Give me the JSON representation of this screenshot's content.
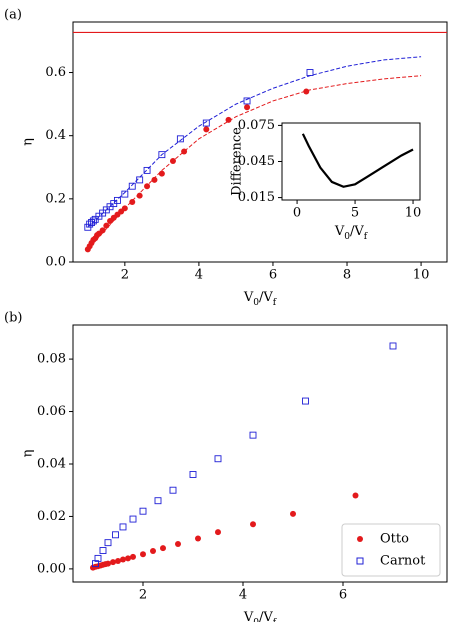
{
  "chart_data": [
    {
      "type": "scatter",
      "panel_label": "(a)",
      "x_label": "V_0/V_f",
      "y_label": "η",
      "xlim": [
        0.6,
        10.7
      ],
      "ylim": [
        0,
        0.76
      ],
      "xticks": [
        2,
        4,
        6,
        8,
        10
      ],
      "yticks": [
        {
          "value": 0,
          "label": "0.0"
        },
        {
          "value": 0.2,
          "label": "0.2"
        },
        {
          "value": 0.4,
          "label": "0.4"
        },
        {
          "value": 0.6,
          "label": "0.6"
        }
      ],
      "reference_line": {
        "value": 0.727,
        "color": "#e31a1c"
      },
      "series": [
        {
          "color": "#1f1fd6",
          "marker": "dashed",
          "x": [
            1,
            2,
            3,
            4,
            5,
            6,
            7,
            8,
            9,
            10
          ],
          "values": [
            0.11,
            0.22,
            0.34,
            0.43,
            0.5,
            0.55,
            0.59,
            0.62,
            0.64,
            0.65
          ]
        },
        {
          "color": "#e31a1c",
          "marker": "dashed",
          "x": [
            1,
            2,
            3,
            4,
            5,
            6,
            7,
            8,
            9,
            10
          ],
          "values": [
            0.04,
            0.17,
            0.29,
            0.39,
            0.46,
            0.51,
            0.545,
            0.565,
            0.58,
            0.59
          ]
        },
        {
          "color": "#e31a1c",
          "marker": "dot",
          "x": [
            1.0,
            1.05,
            1.1,
            1.15,
            1.2,
            1.25,
            1.3,
            1.4,
            1.5,
            1.6,
            1.7,
            1.8,
            1.9,
            2.0,
            2.2,
            2.4,
            2.6,
            2.8,
            3.0,
            3.3,
            3.6,
            4.2,
            4.8,
            5.3,
            6.9
          ],
          "values": [
            0.04,
            0.05,
            0.06,
            0.07,
            0.075,
            0.085,
            0.09,
            0.1,
            0.115,
            0.13,
            0.14,
            0.15,
            0.16,
            0.17,
            0.19,
            0.21,
            0.24,
            0.26,
            0.28,
            0.32,
            0.35,
            0.42,
            0.45,
            0.49,
            0.54
          ]
        },
        {
          "color": "#1f1fd6",
          "marker": "square",
          "x": [
            1.0,
            1.05,
            1.1,
            1.15,
            1.2,
            1.3,
            1.4,
            1.5,
            1.6,
            1.7,
            1.8,
            2.0,
            2.2,
            2.4,
            2.6,
            3.0,
            3.5,
            4.2,
            5.3,
            7.0
          ],
          "values": [
            0.11,
            0.12,
            0.125,
            0.13,
            0.135,
            0.145,
            0.155,
            0.165,
            0.175,
            0.185,
            0.195,
            0.215,
            0.24,
            0.26,
            0.29,
            0.34,
            0.39,
            0.44,
            0.51,
            0.6
          ]
        }
      ]
    },
    {
      "type": "line",
      "x_label": "V_0/V_f",
      "y_label": "Difference",
      "xlim": [
        -1.3,
        10.6
      ],
      "ylim": [
        0.013,
        0.077
      ],
      "xticks": [
        0,
        5,
        10
      ],
      "yticks": [
        0.015,
        0.045,
        0.075
      ],
      "series": [
        {
          "color": "#000000",
          "marker": "line",
          "x": [
            0.5,
            1,
            2,
            3,
            4,
            5,
            6,
            7,
            8,
            9,
            10
          ],
          "values": [
            0.068,
            0.058,
            0.04,
            0.028,
            0.024,
            0.026,
            0.032,
            0.038,
            0.044,
            0.05,
            0.055
          ]
        }
      ]
    },
    {
      "type": "scatter",
      "panel_label": "(b)",
      "x_label": "V_0/V_f",
      "y_label": "η",
      "xlim": [
        0.6,
        8.08
      ],
      "ylim": [
        -0.005,
        0.093
      ],
      "xticks": [
        2,
        4,
        6
      ],
      "yticks": [
        {
          "value": 0,
          "label": "0.00"
        },
        {
          "value": 0.02,
          "label": "0.02"
        },
        {
          "value": 0.04,
          "label": "0.04"
        },
        {
          "value": 0.06,
          "label": "0.06"
        },
        {
          "value": 0.08,
          "label": "0.08"
        }
      ],
      "legend": "lower right",
      "series": [
        {
          "name": "Otto",
          "color": "#e31a1c",
          "marker": "dot",
          "x": [
            1.0,
            1.05,
            1.1,
            1.15,
            1.2,
            1.25,
            1.3,
            1.4,
            1.5,
            1.6,
            1.7,
            1.8,
            2.0,
            2.2,
            2.4,
            2.7,
            3.1,
            3.5,
            4.2,
            5.0,
            6.25
          ],
          "values": [
            0.0005,
            0.0008,
            0.001,
            0.0013,
            0.0016,
            0.0018,
            0.002,
            0.0026,
            0.003,
            0.0036,
            0.004,
            0.0046,
            0.0056,
            0.0068,
            0.0079,
            0.0095,
            0.0116,
            0.014,
            0.017,
            0.021,
            0.028
          ]
        },
        {
          "name": "Carnot",
          "color": "#1f1fd6",
          "marker": "square",
          "x": [
            1.05,
            1.1,
            1.2,
            1.3,
            1.45,
            1.6,
            1.8,
            2.0,
            2.3,
            2.6,
            3.0,
            3.5,
            4.2,
            5.25,
            7.0
          ],
          "values": [
            0.002,
            0.004,
            0.007,
            0.01,
            0.013,
            0.016,
            0.019,
            0.022,
            0.026,
            0.03,
            0.036,
            0.042,
            0.051,
            0.064,
            0.085
          ]
        }
      ]
    }
  ]
}
